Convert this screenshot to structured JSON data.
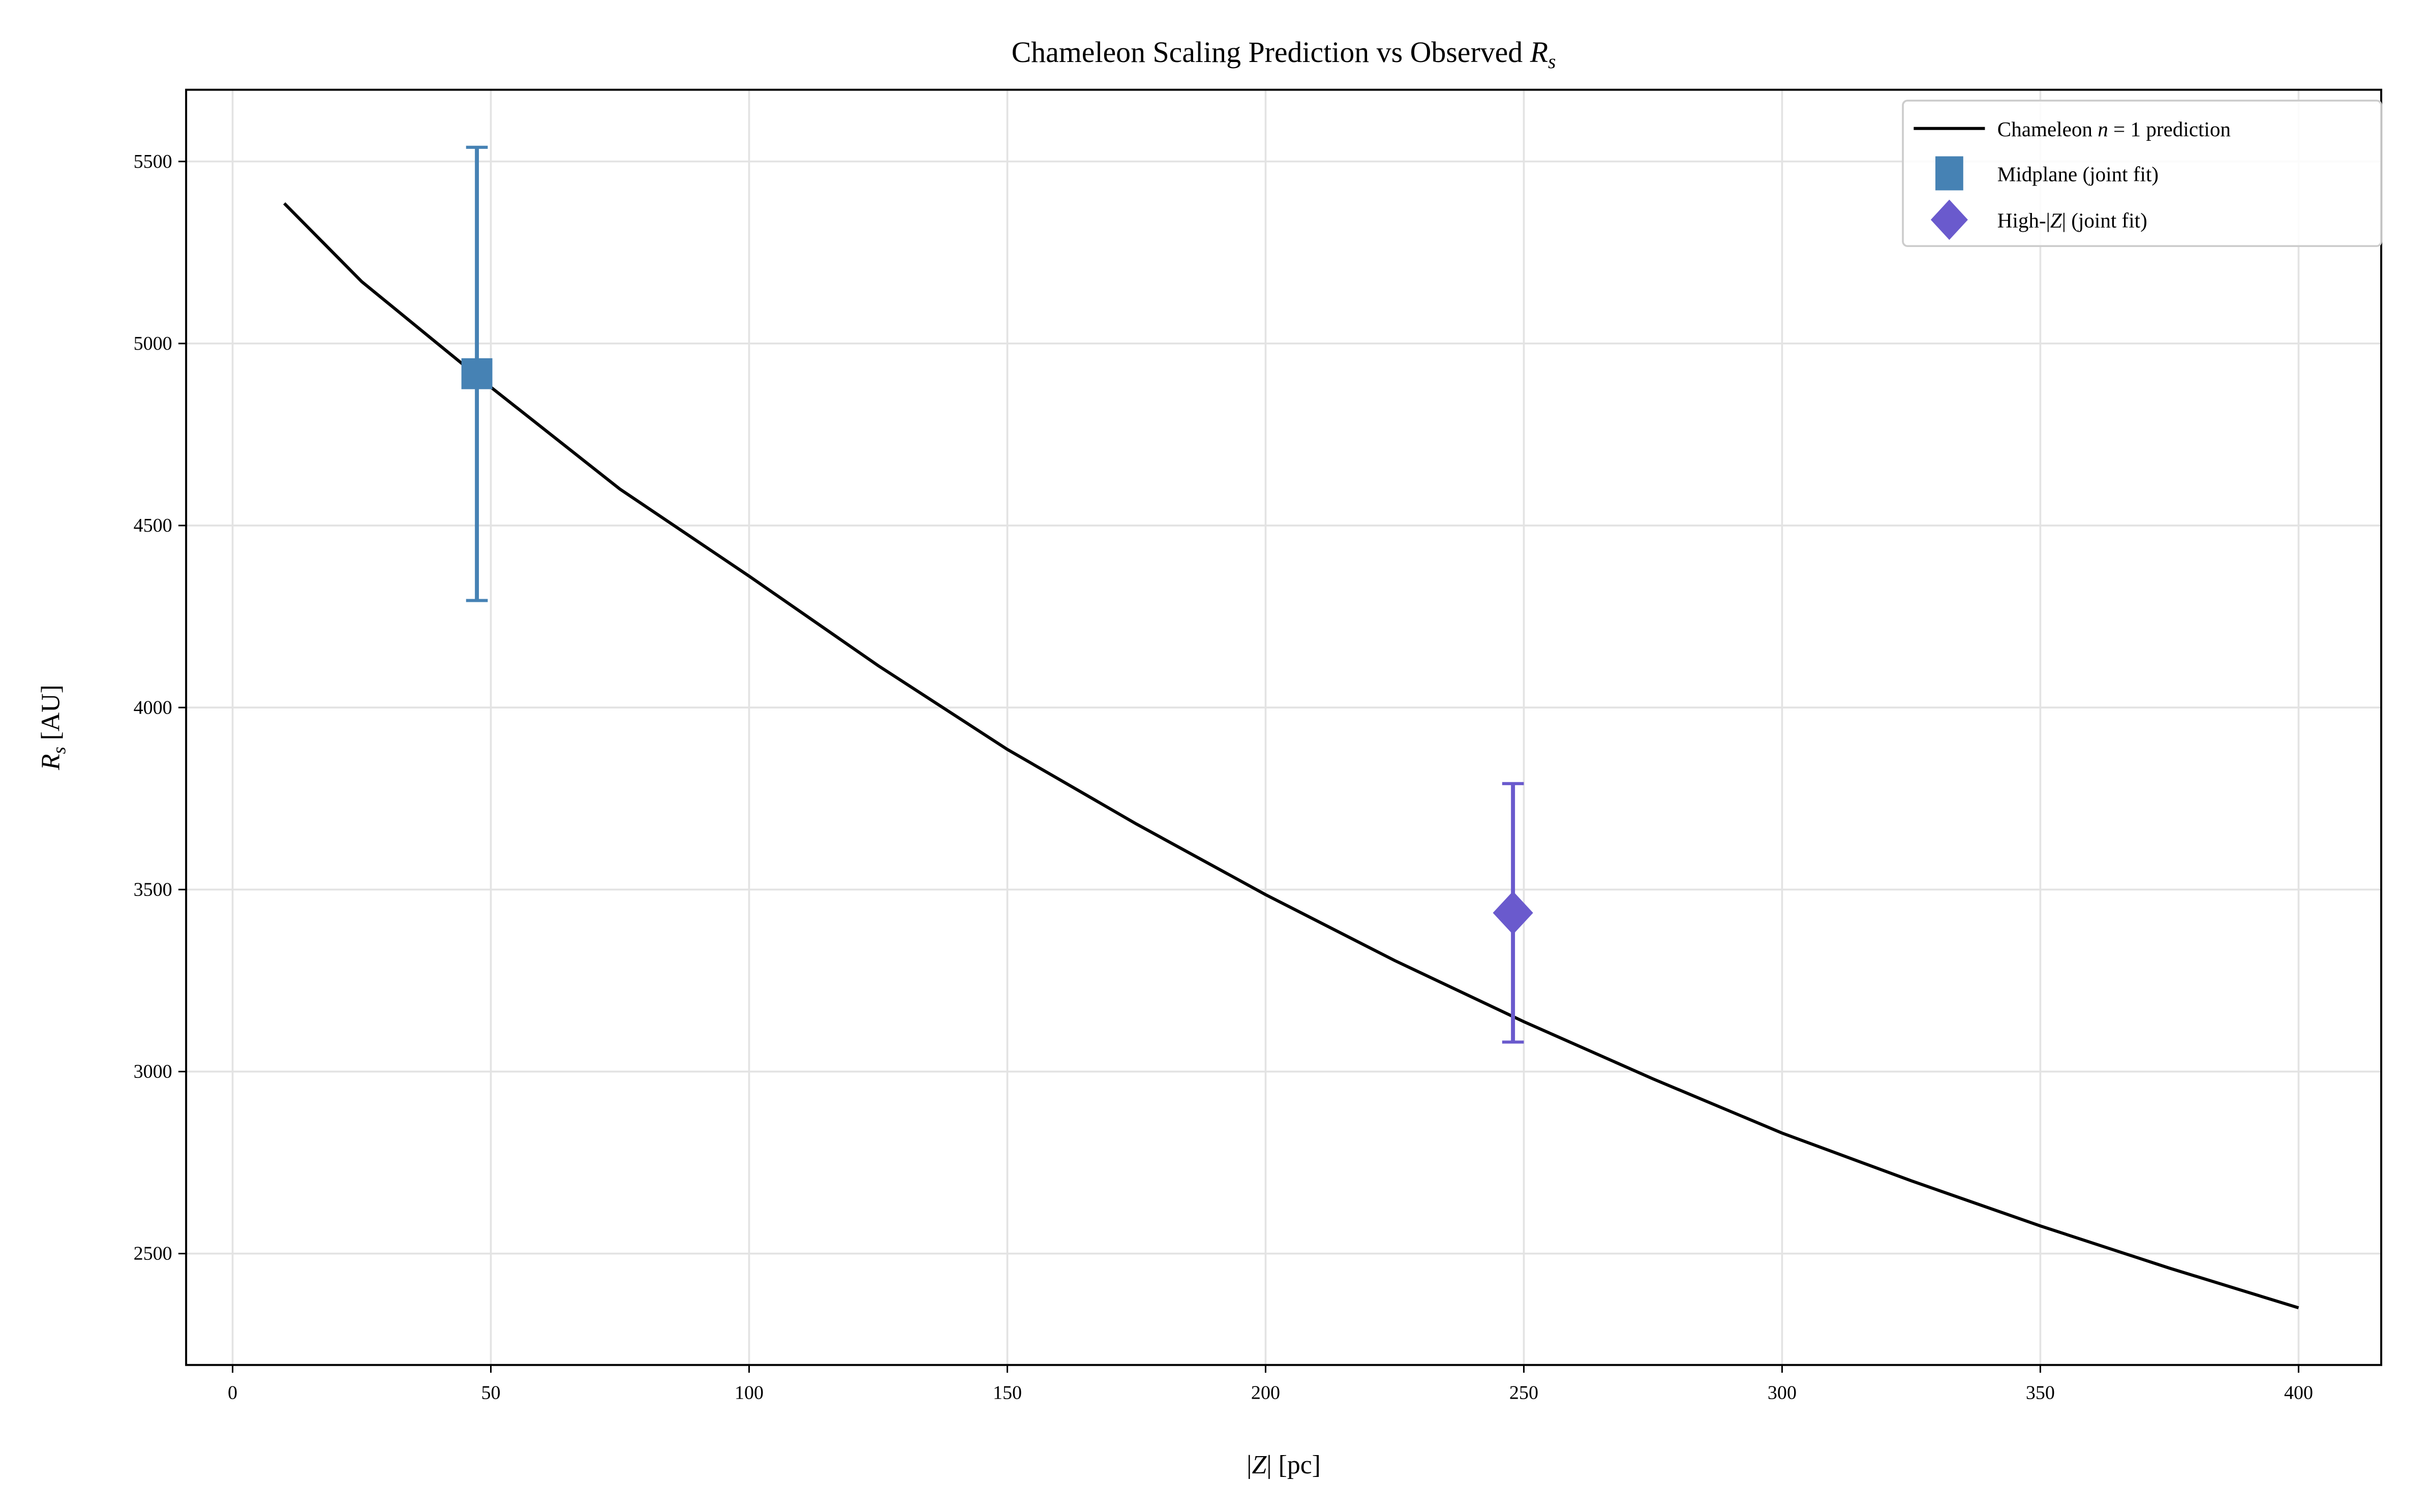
{
  "chart_data": {
    "type": "line",
    "title": {
      "text": "Chameleon Scaling Prediction vs Observed ",
      "math": "R",
      "sub": "s"
    },
    "xlabel": {
      "pre": "|",
      "math": "Z",
      "post": "| [pc]"
    },
    "ylabel": {
      "math": "R",
      "sub": "s",
      "post": " [AU]"
    },
    "xlim": [
      -9,
      416
    ],
    "ylim": [
      2194,
      5697
    ],
    "xticks": [
      0,
      50,
      100,
      150,
      200,
      250,
      300,
      350,
      400
    ],
    "yticks": [
      2500,
      3000,
      3500,
      4000,
      4500,
      5000,
      5500
    ],
    "grid": true,
    "legend_position": "top-right",
    "series": [
      {
        "name": "Chameleon n = 1 prediction",
        "legend_parts": {
          "pre": "Chameleon ",
          "math": "n",
          "post": " = 1 prediction"
        },
        "type": "line",
        "color": "#000000",
        "x": [
          10,
          25,
          50,
          75,
          100,
          125,
          150,
          175,
          200,
          225,
          250,
          275,
          300,
          325,
          350,
          375,
          400
        ],
        "y": [
          5385,
          5170,
          4880,
          4600,
          4361,
          4115,
          3885,
          3680,
          3486,
          3305,
          3137,
          2980,
          2831,
          2700,
          2576,
          2460,
          2351
        ]
      },
      {
        "name": "Midplane (joint fit)",
        "legend_parts": {
          "pre": "Midplane (joint fit)",
          "math": "",
          "post": ""
        },
        "type": "errorbar",
        "marker": "square",
        "color": "#4682b4",
        "x": [
          47.3
        ],
        "y": [
          4917
        ],
        "yerr_low": [
          4294
        ],
        "yerr_high": [
          5539
        ]
      },
      {
        "name": "High-|Z| (joint fit)",
        "legend_parts": {
          "pre": "High-|",
          "math": "Z",
          "post": "| (joint fit)"
        },
        "type": "errorbar",
        "marker": "diamond",
        "color": "#6a5acd",
        "x": [
          247.9
        ],
        "y": [
          3436
        ],
        "yerr_low": [
          3081
        ],
        "yerr_high": [
          3791
        ]
      }
    ]
  }
}
